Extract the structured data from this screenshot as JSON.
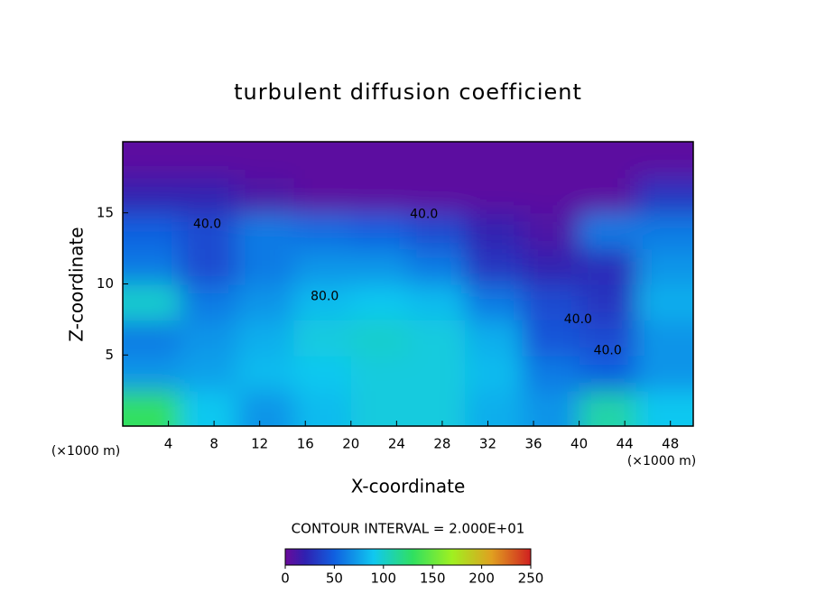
{
  "chart_data": {
    "type": "heatmap",
    "title": "turbulent diffusion coefficient",
    "xlabel": "X-coordinate",
    "ylabel": "Z-coordinate",
    "x_unit_label": "(×1000 m)",
    "y_unit_label": "(×1000 m)",
    "xlim": [
      0,
      50
    ],
    "ylim": [
      0,
      20
    ],
    "xticks": [
      4,
      8,
      12,
      16,
      20,
      24,
      28,
      32,
      36,
      40,
      44,
      48
    ],
    "yticks": [
      5,
      10,
      15
    ],
    "z": [
      [
        130,
        90,
        70,
        85,
        95,
        95,
        80,
        70,
        110,
        90
      ],
      [
        70,
        75,
        85,
        90,
        95,
        95,
        85,
        60,
        50,
        70
      ],
      [
        60,
        70,
        80,
        95,
        100,
        95,
        80,
        45,
        40,
        70
      ],
      [
        100,
        60,
        70,
        85,
        90,
        85,
        60,
        40,
        30,
        80
      ],
      [
        60,
        40,
        60,
        70,
        70,
        60,
        30,
        20,
        25,
        70
      ],
      [
        50,
        40,
        60,
        55,
        50,
        40,
        20,
        10,
        60,
        60
      ],
      [
        20,
        20,
        10,
        5,
        5,
        5,
        5,
        5,
        5,
        30
      ],
      [
        5,
        5,
        5,
        5,
        5,
        5,
        5,
        5,
        5,
        5
      ]
    ],
    "contour_interval_label": "CONTOUR INTERVAL = 2.000E+01",
    "contour_labels": [
      {
        "value": 40,
        "label": "40.0",
        "x": 26.4,
        "y": 14.9
      },
      {
        "value": 80,
        "label": "80.0",
        "x": 17.7,
        "y": 9.1
      },
      {
        "value": 40,
        "label": "40.0",
        "x": 7.4,
        "y": 14.2
      },
      {
        "value": 40,
        "label": "40.0",
        "x": 39.9,
        "y": 7.5
      },
      {
        "value": 40,
        "label": "40.0",
        "x": 42.5,
        "y": 5.3
      }
    ],
    "zlim": [
      0,
      250
    ],
    "zticks": [
      0,
      50,
      100,
      150,
      200,
      250
    ],
    "colormap": [
      {
        "value": 0,
        "color": "#6a0a9a"
      },
      {
        "value": 20,
        "color": "#3020b0"
      },
      {
        "value": 50,
        "color": "#1060e0"
      },
      {
        "value": 90,
        "color": "#10c8f0"
      },
      {
        "value": 130,
        "color": "#30e060"
      },
      {
        "value": 170,
        "color": "#a0f020"
      },
      {
        "value": 210,
        "color": "#e0a020"
      },
      {
        "value": 250,
        "color": "#d02020"
      }
    ]
  }
}
